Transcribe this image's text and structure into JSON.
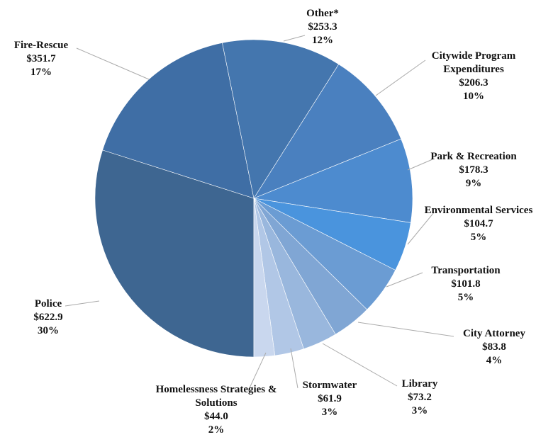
{
  "chart_data": {
    "type": "pie",
    "categories": [
      "Police",
      "Fire-Rescue",
      "Other*",
      "Citywide Program Expenditures",
      "Park & Recreation",
      "Environmental Services",
      "Transportation",
      "City Attorney",
      "Library",
      "Stormwater",
      "Homelessness Strategies & Solutions"
    ],
    "values": [
      622.9,
      351.7,
      253.3,
      206.3,
      178.3,
      104.7,
      101.8,
      83.8,
      73.2,
      61.9,
      44.0
    ],
    "value_labels": [
      "$622.9",
      "$351.7",
      "$253.3",
      "$206.3",
      "$178.3",
      "$104.7",
      "$101.8",
      "$83.8",
      "$73.2",
      "$61.9",
      "$44.0"
    ],
    "percent_labels": [
      "30%",
      "17%",
      "12%",
      "10%",
      "9%",
      "5%",
      "5%",
      "4%",
      "3%",
      "3%",
      "2%"
    ],
    "colors": [
      "#3e6691",
      "#3f6ea5",
      "#4476ae",
      "#4a80bf",
      "#4d8bcf",
      "#4a94dd",
      "#6b9cd3",
      "#80a6d4",
      "#99b7dd",
      "#b1c7e6",
      "#c9d7ee"
    ]
  }
}
